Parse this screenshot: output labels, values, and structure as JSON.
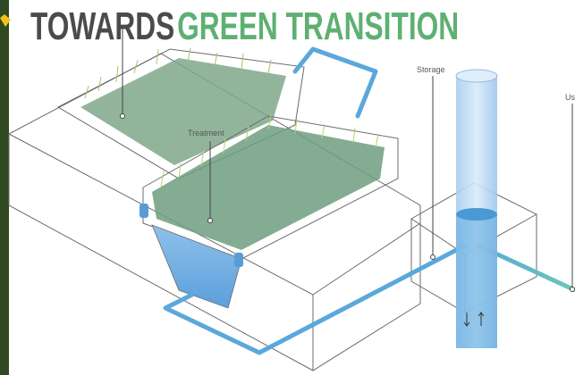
{
  "header": {
    "title_dark": "TOWARDS",
    "title_green": "GREEN TRANSITION"
  },
  "labels": {
    "treatment": "Treatment",
    "storage": "Storage",
    "use": "Us"
  }
}
